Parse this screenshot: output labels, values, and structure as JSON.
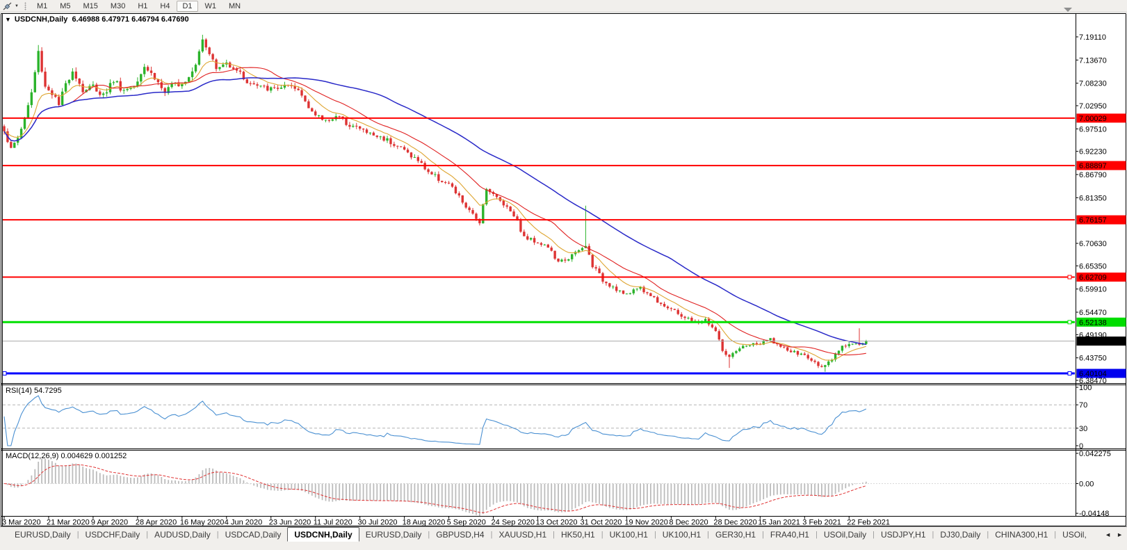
{
  "toolbar": {
    "timeframes": [
      "M1",
      "M5",
      "M15",
      "M30",
      "H1",
      "H4",
      "D1",
      "W1",
      "MN"
    ],
    "active_timeframe": "D1"
  },
  "icons": {
    "title_caret": "▼",
    "tool_caret": "▼",
    "tab_scroll_left": "◄",
    "tab_scroll_right": "►"
  },
  "chart_header": {
    "symbol_label": "USDCNH,Daily",
    "ohlc_text": "6.46988 6.47971 6.46794 6.47690"
  },
  "rsi_panel": {
    "label": "RSI(14) 54.7295",
    "axis_ticks": [
      {
        "label": "100",
        "value": 100
      },
      {
        "label": "70",
        "value": 70
      },
      {
        "label": "30",
        "value": 30
      },
      {
        "label": "0",
        "value": 0
      }
    ]
  },
  "macd_panel": {
    "label": "MACD(12,26,9) 0.004629 0.001252",
    "axis_ticks": [
      {
        "label": "0.042275",
        "value": 0.042275
      },
      {
        "label": "0.00",
        "value": 0
      },
      {
        "label": "-0.04148",
        "value": -0.04148
      }
    ]
  },
  "tab_bar": {
    "tabs": [
      "EURUSD,Daily",
      "USDCHF,Daily",
      "AUDUSD,Daily",
      "USDCAD,Daily",
      "USDCNH,Daily",
      "EURUSD,Daily",
      "GBPUSD,H4",
      "XAUUSD,H1",
      "HK50,H1",
      "UK100,H1",
      "UK100,H1",
      "GER30,H1",
      "FRA40,H1",
      "USOil,Daily",
      "USDJPY,H1",
      "DJ30,Daily",
      "CHINA300,H1",
      "USOil,"
    ],
    "active_index": 4
  },
  "chart_data": {
    "type": "candlestick",
    "symbol": "USDCNH",
    "timeframe": "Daily",
    "title": "USDCNH,Daily",
    "ohlc_last": {
      "open": 6.46988,
      "high": 6.47971,
      "low": 6.46794,
      "close": 6.4769
    },
    "current_price": 6.4769,
    "price_axis_ticks": [
      7.1911,
      7.1367,
      7.0823,
      7.0295,
      6.9751,
      6.9223,
      6.8679,
      6.8135,
      6.7063,
      6.6535,
      6.5991,
      6.5447,
      6.4919,
      6.4375,
      6.3847
    ],
    "x_axis_labels": [
      "3 Mar 2020",
      "21 Mar 2020",
      "9 Apr 2020",
      "28 Apr 2020",
      "16 May 2020",
      "4 Jun 2020",
      "23 Jun 2020",
      "11 Jul 2020",
      "30 Jul 2020",
      "18 Aug 2020",
      "5 Sep 2020",
      "24 Sep 2020",
      "13 Oct 2020",
      "31 Oct 2020",
      "19 Nov 2020",
      "8 Dec 2020",
      "28 Dec 2020",
      "15 Jan 2021",
      "3 Feb 2021",
      "22 Feb 2021"
    ],
    "candles_per_xlabel": 13,
    "candle_count": 253,
    "bull_color": "#2bb32b",
    "bear_color": "#dd3333",
    "close_keypoints": [
      [
        0,
        6.975
      ],
      [
        2,
        6.925
      ],
      [
        4,
        6.955
      ],
      [
        6,
        7.0
      ],
      [
        8,
        7.06
      ],
      [
        10,
        7.155
      ],
      [
        12,
        7.075
      ],
      [
        14,
        7.06
      ],
      [
        16,
        7.03
      ],
      [
        18,
        7.08
      ],
      [
        20,
        7.115
      ],
      [
        23,
        7.065
      ],
      [
        26,
        7.075
      ],
      [
        29,
        7.055
      ],
      [
        32,
        7.09
      ],
      [
        35,
        7.065
      ],
      [
        38,
        7.08
      ],
      [
        41,
        7.125
      ],
      [
        44,
        7.095
      ],
      [
        47,
        7.06
      ],
      [
        50,
        7.08
      ],
      [
        53,
        7.09
      ],
      [
        56,
        7.13
      ],
      [
        58,
        7.19
      ],
      [
        60,
        7.155
      ],
      [
        62,
        7.115
      ],
      [
        65,
        7.13
      ],
      [
        68,
        7.115
      ],
      [
        71,
        7.085
      ],
      [
        74,
        7.075
      ],
      [
        78,
        7.068
      ],
      [
        82,
        7.075
      ],
      [
        86,
        7.065
      ],
      [
        89,
        7.03
      ],
      [
        91,
        7.005
      ],
      [
        94,
        6.995
      ],
      [
        97,
        7.005
      ],
      [
        100,
        6.99
      ],
      [
        104,
        6.975
      ],
      [
        108,
        6.96
      ],
      [
        112,
        6.95
      ],
      [
        117,
        6.925
      ],
      [
        121,
        6.9
      ],
      [
        124,
        6.875
      ],
      [
        127,
        6.858
      ],
      [
        130,
        6.845
      ],
      [
        133,
        6.815
      ],
      [
        136,
        6.78
      ],
      [
        139,
        6.758
      ],
      [
        141,
        6.838
      ],
      [
        143,
        6.82
      ],
      [
        146,
        6.8
      ],
      [
        149,
        6.775
      ],
      [
        152,
        6.72
      ],
      [
        156,
        6.71
      ],
      [
        159,
        6.698
      ],
      [
        162,
        6.66
      ],
      [
        165,
        6.673
      ],
      [
        168,
        6.688
      ],
      [
        170,
        6.7
      ],
      [
        172,
        6.655
      ],
      [
        175,
        6.62
      ],
      [
        178,
        6.605
      ],
      [
        182,
        6.583
      ],
      [
        185,
        6.605
      ],
      [
        188,
        6.59
      ],
      [
        191,
        6.572
      ],
      [
        194,
        6.556
      ],
      [
        196,
        6.545
      ],
      [
        199,
        6.533
      ],
      [
        202,
        6.52
      ],
      [
        205,
        6.527
      ],
      [
        208,
        6.5
      ],
      [
        210,
        6.455
      ],
      [
        212,
        6.437
      ],
      [
        214,
        6.452
      ],
      [
        217,
        6.468
      ],
      [
        221,
        6.47
      ],
      [
        224,
        6.482
      ],
      [
        227,
        6.462
      ],
      [
        230,
        6.452
      ],
      [
        234,
        6.443
      ],
      [
        237,
        6.425
      ],
      [
        240,
        6.417
      ],
      [
        242,
        6.432
      ],
      [
        244,
        6.455
      ],
      [
        246,
        6.468
      ],
      [
        248,
        6.474
      ],
      [
        250,
        6.468
      ],
      [
        252,
        6.477
      ]
    ],
    "spikes": [
      {
        "i": 10,
        "high": 7.172
      },
      {
        "i": 58,
        "high": 7.196
      },
      {
        "i": 139,
        "low": 6.753
      },
      {
        "i": 170,
        "high": 6.795
      },
      {
        "i": 212,
        "low": 6.414
      },
      {
        "i": 240,
        "low": 6.405
      },
      {
        "i": 250,
        "high": 6.507
      }
    ],
    "moving_averages": [
      {
        "period": 10,
        "type": "ema",
        "color": "#dea531",
        "width": 1.1
      },
      {
        "period": 21,
        "type": "sma",
        "color": "#e02020",
        "width": 1.1
      },
      {
        "period": 55,
        "type": "sma",
        "color": "#2929c8",
        "width": 1.5
      }
    ],
    "horizontal_lines": [
      {
        "price": 7.00029,
        "color": "#ff0000",
        "width": 2,
        "label_bg": "#ff0000",
        "label_fg": "#ffffff",
        "handle": false,
        "left_handle": false
      },
      {
        "price": 6.88897,
        "color": "#ff0000",
        "width": 2,
        "label_bg": "#ff0000",
        "label_fg": "#ffffff",
        "handle": false,
        "left_handle": false
      },
      {
        "price": 6.76157,
        "color": "#ff0000",
        "width": 2,
        "label_bg": "#ff0000",
        "label_fg": "#ffffff",
        "handle": false,
        "left_handle": false
      },
      {
        "price": 6.62709,
        "color": "#ff0000",
        "width": 2,
        "label_bg": "#ff0000",
        "label_fg": "#ffffff",
        "handle": true,
        "left_handle": false
      },
      {
        "price": 6.52138,
        "color": "#00e000",
        "width": 3,
        "label_bg": "#00dd00",
        "label_fg": "#000000",
        "handle": true,
        "left_handle": false
      },
      {
        "price": 6.40104,
        "color": "#0000ff",
        "width": 3,
        "label_bg": "#0000ee",
        "label_fg": "#ffffff",
        "handle": true,
        "left_handle": true
      }
    ],
    "rsi": {
      "period": 14,
      "last": 54.7295,
      "color": "#4a90d2",
      "levels": [
        70,
        30
      ],
      "range": [
        0,
        100
      ]
    },
    "macd": {
      "fast": 12,
      "slow": 26,
      "signal_period": 9,
      "macd_last": 0.004629,
      "signal_last": 0.001252,
      "hist_color": "#bcbcbc",
      "signal_color": "#e03232",
      "ylim": [
        -0.04148,
        0.042275
      ]
    }
  }
}
